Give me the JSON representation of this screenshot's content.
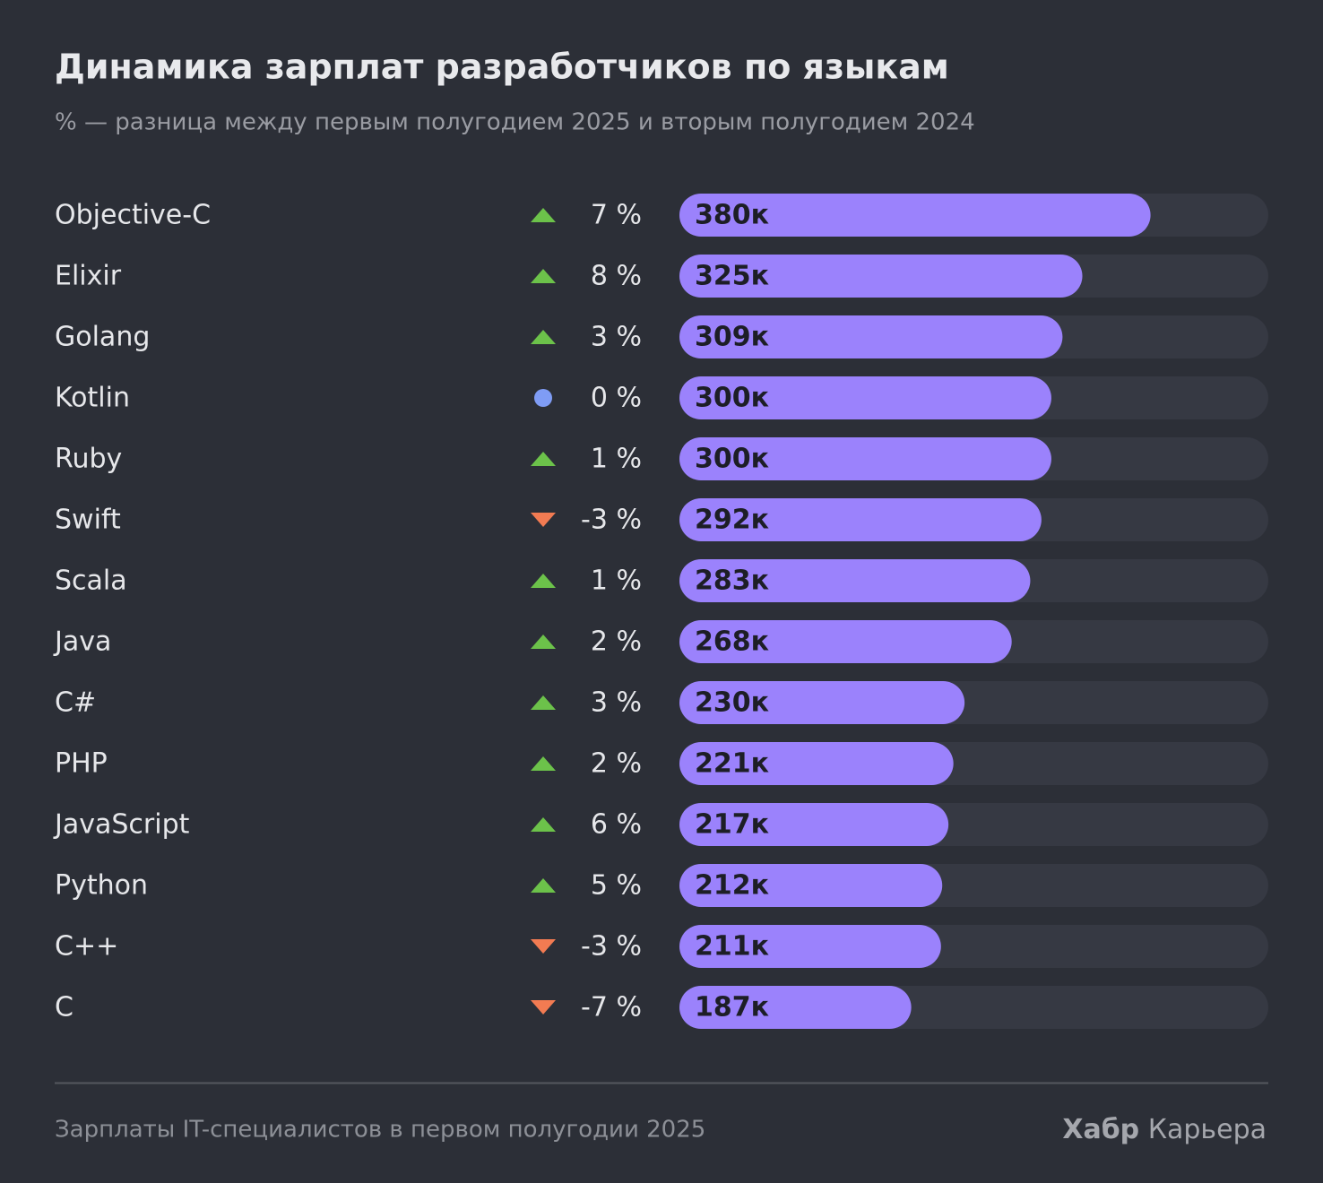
{
  "chart_data": {
    "type": "bar",
    "orientation": "horizontal",
    "title": "Динамика зарплат разработчиков по языкам",
    "subtitle": "% — разница между первым полугодием 2025 и вторым полугодием 2024",
    "categories": [
      "Objective-C",
      "Elixir",
      "Golang",
      "Kotlin",
      "Ruby",
      "Swift",
      "Scala",
      "Java",
      "C#",
      "PHP",
      "JavaScript",
      "Python",
      "C++",
      "C"
    ],
    "values": [
      380,
      325,
      309,
      300,
      300,
      292,
      283,
      268,
      230,
      221,
      217,
      212,
      211,
      187
    ],
    "value_labels": [
      "380к",
      "325к",
      "309к",
      "300к",
      "300к",
      "292к",
      "283к",
      "268к",
      "230к",
      "221к",
      "217к",
      "212к",
      "211к",
      "187к"
    ],
    "changes": [
      7,
      8,
      3,
      0,
      1,
      -3,
      1,
      2,
      3,
      2,
      6,
      5,
      -3,
      -7
    ],
    "change_labels": [
      "7 %",
      "8 %",
      "3 %",
      "0 %",
      "1 %",
      "-3 %",
      "1 %",
      "2 %",
      "3 %",
      "2 %",
      "6 %",
      "5 %",
      "-3 %",
      "-7 %"
    ],
    "xlim": [
      0,
      475
    ],
    "color": "#9b82fc",
    "track_color": "#363943",
    "up_color": "#6cc24a",
    "down_color": "#f27b52",
    "flat_color": "#7f9cf5",
    "footer": "Зарплаты IT-специалистов в первом полугодии 2025",
    "brand": {
      "name": "Хабр",
      "product": "Карьера"
    }
  }
}
